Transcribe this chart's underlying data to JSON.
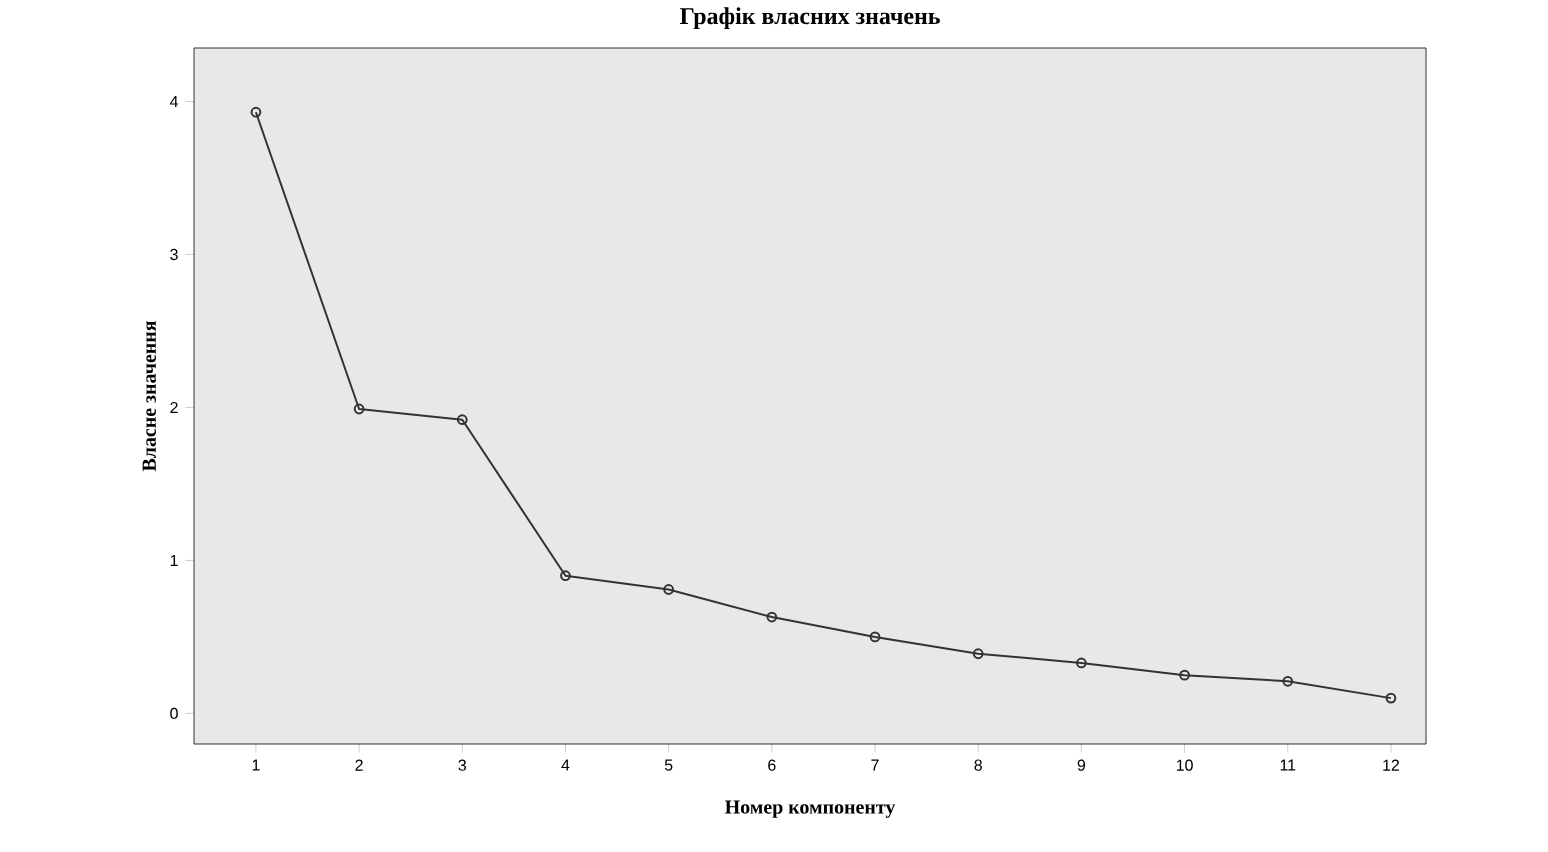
{
  "chart_data": {
    "type": "line",
    "title": "Графік власних значень",
    "xlabel": "Номер компоненту",
    "ylabel": "Власне значення",
    "categories": [
      "1",
      "2",
      "3",
      "4",
      "5",
      "6",
      "7",
      "8",
      "9",
      "10",
      "11",
      "12"
    ],
    "values": [
      3.93,
      1.99,
      1.92,
      0.9,
      0.81,
      0.63,
      0.5,
      0.39,
      0.33,
      0.25,
      0.21,
      0.1
    ],
    "color": "#333333",
    "marker": "circle",
    "line_style": "solid",
    "ylim": [
      -0.2,
      4.35
    ],
    "yticks": [
      0,
      1,
      2,
      3,
      4
    ],
    "grid": false
  }
}
